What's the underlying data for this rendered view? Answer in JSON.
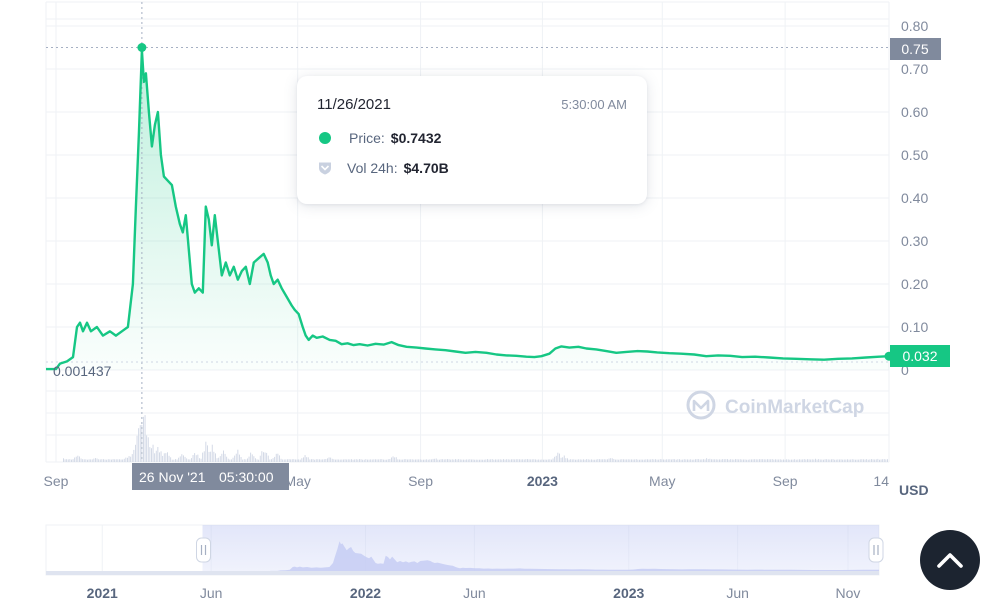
{
  "chart_data": {
    "type": "line",
    "y_tick_labels": [
      "0.80",
      "0.70",
      "0.60",
      "0.50",
      "0.40",
      "0.30",
      "0.20",
      "0.10",
      "0"
    ],
    "y_ticks": [
      0.8,
      0.7,
      0.6,
      0.5,
      0.4,
      0.3,
      0.2,
      0.1,
      0
    ],
    "ylim": [
      0,
      0.85
    ],
    "unit": "USD",
    "start_price_label": "0.001437",
    "high_price_label": "0.75",
    "current_price_label": "0.032",
    "high_price": 0.75,
    "current_price": 0.032,
    "x_labels": [
      "Sep",
      "May",
      "Sep",
      "2023",
      "May",
      "Sep",
      "14"
    ],
    "x_label_dates": [
      "2021-09-01",
      "2022-05-01",
      "2022-09-01",
      "2023-01-01",
      "2023-05-01",
      "2023-09-01",
      "2023-12-14"
    ],
    "x_range": [
      "2021-08-22",
      "2023-12-14"
    ],
    "hover_date": "2021-11-26",
    "hover_label": "26 Nov '21",
    "hover_time": "05:30:00",
    "series": [
      {
        "color": "#16c784",
        "points": [
          [
            "2021-08-22",
            0.002
          ],
          [
            "2021-09-01",
            0.002
          ],
          [
            "2021-09-05",
            0.015
          ],
          [
            "2021-09-12",
            0.02
          ],
          [
            "2021-09-18",
            0.03
          ],
          [
            "2021-09-22",
            0.1
          ],
          [
            "2021-09-25",
            0.11
          ],
          [
            "2021-09-28",
            0.09
          ],
          [
            "2021-10-02",
            0.11
          ],
          [
            "2021-10-06",
            0.09
          ],
          [
            "2021-10-12",
            0.1
          ],
          [
            "2021-10-18",
            0.08
          ],
          [
            "2021-10-25",
            0.09
          ],
          [
            "2021-10-31",
            0.08
          ],
          [
            "2021-11-06",
            0.09
          ],
          [
            "2021-11-12",
            0.1
          ],
          [
            "2021-11-17",
            0.2
          ],
          [
            "2021-11-20",
            0.38
          ],
          [
            "2021-11-23",
            0.55
          ],
          [
            "2021-11-26",
            0.7432
          ],
          [
            "2021-11-28",
            0.67
          ],
          [
            "2021-11-30",
            0.69
          ],
          [
            "2021-12-03",
            0.6
          ],
          [
            "2021-12-06",
            0.52
          ],
          [
            "2021-12-09",
            0.57
          ],
          [
            "2021-12-12",
            0.6
          ],
          [
            "2021-12-15",
            0.5
          ],
          [
            "2021-12-18",
            0.45
          ],
          [
            "2021-12-22",
            0.44
          ],
          [
            "2021-12-26",
            0.43
          ],
          [
            "2021-12-30",
            0.38
          ],
          [
            "2022-01-03",
            0.34
          ],
          [
            "2022-01-06",
            0.32
          ],
          [
            "2022-01-09",
            0.36
          ],
          [
            "2022-01-12",
            0.28
          ],
          [
            "2022-01-15",
            0.2
          ],
          [
            "2022-01-18",
            0.18
          ],
          [
            "2022-01-22",
            0.19
          ],
          [
            "2022-01-26",
            0.18
          ],
          [
            "2022-01-29",
            0.38
          ],
          [
            "2022-02-01",
            0.35
          ],
          [
            "2022-02-04",
            0.29
          ],
          [
            "2022-02-07",
            0.36
          ],
          [
            "2022-02-10",
            0.3
          ],
          [
            "2022-02-14",
            0.22
          ],
          [
            "2022-02-18",
            0.25
          ],
          [
            "2022-02-22",
            0.22
          ],
          [
            "2022-02-26",
            0.24
          ],
          [
            "2022-03-02",
            0.21
          ],
          [
            "2022-03-06",
            0.23
          ],
          [
            "2022-03-10",
            0.24
          ],
          [
            "2022-03-14",
            0.2
          ],
          [
            "2022-03-18",
            0.25
          ],
          [
            "2022-03-23",
            0.26
          ],
          [
            "2022-03-28",
            0.27
          ],
          [
            "2022-04-01",
            0.25
          ],
          [
            "2022-04-04",
            0.22
          ],
          [
            "2022-04-07",
            0.2
          ],
          [
            "2022-04-11",
            0.21
          ],
          [
            "2022-04-15",
            0.19
          ],
          [
            "2022-04-20",
            0.17
          ],
          [
            "2022-04-25",
            0.15
          ],
          [
            "2022-04-28",
            0.14
          ],
          [
            "2022-05-02",
            0.13
          ],
          [
            "2022-05-06",
            0.1
          ],
          [
            "2022-05-09",
            0.08
          ],
          [
            "2022-05-12",
            0.07
          ],
          [
            "2022-05-16",
            0.08
          ],
          [
            "2022-05-20",
            0.075
          ],
          [
            "2022-05-26",
            0.078
          ],
          [
            "2022-06-02",
            0.07
          ],
          [
            "2022-06-08",
            0.068
          ],
          [
            "2022-06-14",
            0.06
          ],
          [
            "2022-06-20",
            0.062
          ],
          [
            "2022-06-26",
            0.058
          ],
          [
            "2022-07-02",
            0.06
          ],
          [
            "2022-07-10",
            0.057
          ],
          [
            "2022-07-18",
            0.061
          ],
          [
            "2022-07-26",
            0.059
          ],
          [
            "2022-08-03",
            0.065
          ],
          [
            "2022-08-10",
            0.058
          ],
          [
            "2022-08-18",
            0.054
          ],
          [
            "2022-08-28",
            0.052
          ],
          [
            "2022-09-06",
            0.05
          ],
          [
            "2022-09-16",
            0.048
          ],
          [
            "2022-09-26",
            0.046
          ],
          [
            "2022-10-06",
            0.043
          ],
          [
            "2022-10-16",
            0.04
          ],
          [
            "2022-10-26",
            0.042
          ],
          [
            "2022-11-06",
            0.04
          ],
          [
            "2022-11-16",
            0.036
          ],
          [
            "2022-11-26",
            0.034
          ],
          [
            "2022-12-06",
            0.033
          ],
          [
            "2022-12-16",
            0.031
          ],
          [
            "2022-12-24",
            0.03
          ],
          [
            "2022-12-31",
            0.032
          ],
          [
            "2023-01-08",
            0.038
          ],
          [
            "2023-01-14",
            0.05
          ],
          [
            "2023-01-20",
            0.055
          ],
          [
            "2023-01-28",
            0.052
          ],
          [
            "2023-02-06",
            0.054
          ],
          [
            "2023-02-14",
            0.05
          ],
          [
            "2023-02-24",
            0.048
          ],
          [
            "2023-03-06",
            0.044
          ],
          [
            "2023-03-16",
            0.04
          ],
          [
            "2023-03-26",
            0.042
          ],
          [
            "2023-04-06",
            0.044
          ],
          [
            "2023-04-16",
            0.043
          ],
          [
            "2023-04-26",
            0.041
          ],
          [
            "2023-05-08",
            0.039
          ],
          [
            "2023-05-20",
            0.038
          ],
          [
            "2023-06-02",
            0.036
          ],
          [
            "2023-06-14",
            0.032
          ],
          [
            "2023-06-26",
            0.034
          ],
          [
            "2023-07-08",
            0.033
          ],
          [
            "2023-07-20",
            0.03
          ],
          [
            "2023-08-02",
            0.031
          ],
          [
            "2023-08-16",
            0.029
          ],
          [
            "2023-08-30",
            0.027
          ],
          [
            "2023-09-12",
            0.026
          ],
          [
            "2023-09-26",
            0.025
          ],
          [
            "2023-10-10",
            0.024
          ],
          [
            "2023-10-24",
            0.026
          ],
          [
            "2023-11-07",
            0.027
          ],
          [
            "2023-11-21",
            0.029
          ],
          [
            "2023-12-04",
            0.031
          ],
          [
            "2023-12-14",
            0.032
          ]
        ]
      }
    ],
    "volume_relative": [
      [
        "2021-09-05",
        0.08
      ],
      [
        "2021-09-22",
        0.1
      ],
      [
        "2021-10-10",
        0.06
      ],
      [
        "2021-11-12",
        0.08
      ],
      [
        "2021-11-18",
        0.25
      ],
      [
        "2021-11-22",
        0.55
      ],
      [
        "2021-11-24",
        0.7
      ],
      [
        "2021-11-26",
        1.0
      ],
      [
        "2021-11-28",
        0.75
      ],
      [
        "2021-12-01",
        0.45
      ],
      [
        "2021-12-06",
        0.3
      ],
      [
        "2021-12-12",
        0.25
      ],
      [
        "2021-12-20",
        0.18
      ],
      [
        "2022-01-05",
        0.16
      ],
      [
        "2022-01-18",
        0.15
      ],
      [
        "2022-01-29",
        0.3
      ],
      [
        "2022-02-04",
        0.25
      ],
      [
        "2022-02-15",
        0.18
      ],
      [
        "2022-03-01",
        0.2
      ],
      [
        "2022-03-15",
        0.14
      ],
      [
        "2022-03-28",
        0.22
      ],
      [
        "2022-04-10",
        0.12
      ],
      [
        "2022-05-08",
        0.1
      ],
      [
        "2022-06-01",
        0.06
      ],
      [
        "2022-08-05",
        0.08
      ],
      [
        "2022-09-15",
        0.04
      ],
      [
        "2023-01-16",
        0.15
      ],
      [
        "2023-01-22",
        0.08
      ],
      [
        "2023-03-10",
        0.05
      ],
      [
        "2023-06-15",
        0.04
      ],
      [
        "2023-10-01",
        0.03
      ],
      [
        "2023-12-01",
        0.03
      ]
    ]
  },
  "tooltip": {
    "date": "11/26/2021",
    "time": "5:30:00 AM",
    "price_label": "Price:",
    "price_value": "$0.7432",
    "vol_label": "Vol 24h:",
    "vol_value": "$4.70B"
  },
  "watermark": "CoinMarketCap",
  "navigator": {
    "x_labels": [
      "2021",
      "Jun",
      "2022",
      "Jun",
      "2023",
      "Jun",
      "Nov"
    ],
    "x_label_dates": [
      "2021-01-01",
      "2021-06-01",
      "2022-01-01",
      "2022-06-01",
      "2023-01-01",
      "2023-06-01",
      "2023-11-01"
    ],
    "x_range": [
      "2020-10-15",
      "2023-12-14"
    ],
    "selection": [
      "2021-05-20",
      "2023-12-14"
    ]
  },
  "colors": {
    "line": "#16c784",
    "grid": "#eff2f5",
    "axis_text": "#808a9d",
    "high_flag": "#808a9d",
    "current_flag": "#16c784",
    "hover_box": "#808a9d",
    "navigator_fill": "#d9dff9"
  },
  "icons": {
    "scroll_top": "chevron-up-icon",
    "vol": "shield-icon",
    "logo": "coinmarketcap-logo-icon"
  }
}
